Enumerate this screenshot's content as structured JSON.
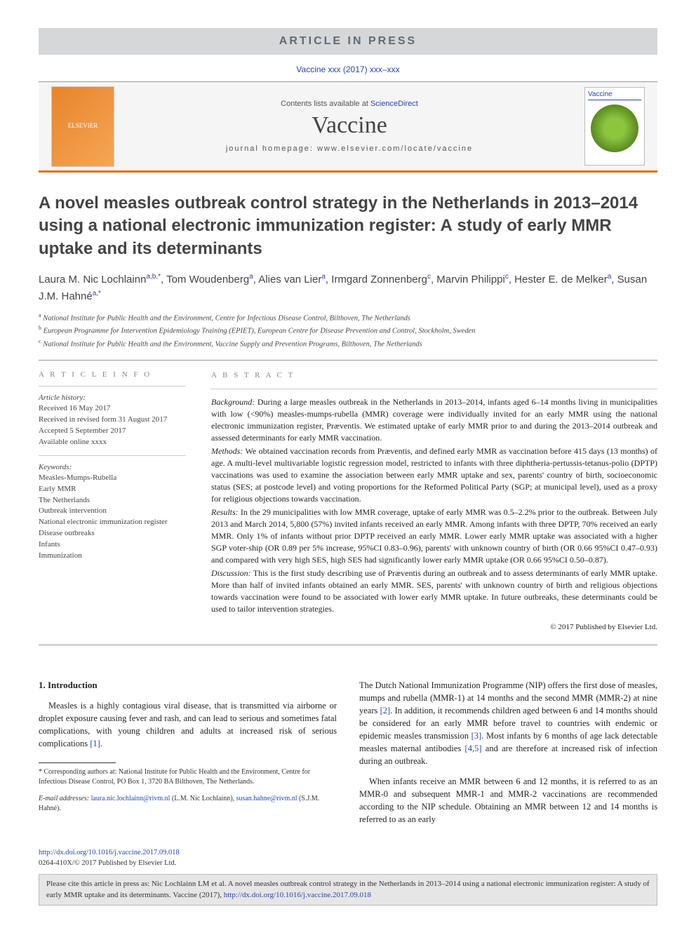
{
  "aip": "ARTICLE IN PRESS",
  "reference": "Vaccine xxx (2017) xxx–xxx",
  "masthead": {
    "contents_prefix": "Contents lists available at ",
    "contents_link": "ScienceDirect",
    "journal": "Vaccine",
    "homepage_label": "journal homepage: www.elsevier.com/locate/vaccine",
    "publisher": "ELSEVIER",
    "cover_label": "Vaccine"
  },
  "title": "A novel measles outbreak control strategy in the Netherlands in 2013–2014 using a national electronic immunization register: A study of early MMR uptake and its determinants",
  "authors_html": "Laura M. Nic Lochlainn<sup>a,b,*</sup>, Tom Woudenberg<sup>a</sup>, Alies van Lier<sup>a</sup>, Irmgard Zonnenberg<sup>c</sup>, Marvin Philippi<sup>c</sup>, Hester E. de Melker<sup>a</sup>, Susan J.M. Hahné<sup>a,*</sup>",
  "affiliations": [
    {
      "sup": "a",
      "text": "National Institute for Public Health and the Environment, Centre for Infectious Disease Control, Bilthoven, The Netherlands"
    },
    {
      "sup": "b",
      "text": "European Programme for Intervention Epidemiology Training (EPIET), European Centre for Disease Prevention and Control, Stockholm, Sweden"
    },
    {
      "sup": "c",
      "text": "National Institute for Public Health and the Environment, Vaccine Supply and Prevention Programs, Bilthoven, The Netherlands"
    }
  ],
  "info": {
    "heading": "A R T I C L E   I N F O",
    "history_label": "Article history:",
    "history": [
      "Received 16 May 2017",
      "Received in revised form 31 August 2017",
      "Accepted 5 September 2017",
      "Available online xxxx"
    ],
    "keywords_label": "Keywords:",
    "keywords": [
      "Measles-Mumps-Rubella",
      "Early MMR",
      "The Netherlands",
      "Outbreak intervention",
      "National electronic immunization register",
      "Disease outbreaks",
      "Infants",
      "Immunization"
    ]
  },
  "abstract": {
    "heading": "A B S T R A C T",
    "sections": [
      {
        "label": "Background:",
        "text": " During a large measles outbreak in the Netherlands in 2013–2014, infants aged 6–14 months living in municipalities with low (<90%) measles-mumps-rubella (MMR) coverage were individually invited for an early MMR using the national electronic immunization register, Præventis. We estimated uptake of early MMR prior to and during the 2013–2014 outbreak and assessed determinants for early MMR vaccination."
      },
      {
        "label": "Methods:",
        "text": " We obtained vaccination records from Præventis, and defined early MMR as vaccination before 415 days (13 months) of age. A multi-level multivariable logistic regression model, restricted to infants with three diphtheria-pertussis-tetanus-polio (DPTP) vaccinations was used to examine the association between early MMR uptake and sex, parents' country of birth, socioeconomic status (SES; at postcode level) and voting proportions for the Reformed Political Party (SGP; at municipal level), used as a proxy for religious objections towards vaccination."
      },
      {
        "label": "Results:",
        "text": " In the 29 municipalities with low MMR coverage, uptake of early MMR was 0.5–2.2% prior to the outbreak. Between July 2013 and March 2014, 5,800 (57%) invited infants received an early MMR. Among infants with three DPTP, 70% received an early MMR. Only 1% of infants without prior DPTP received an early MMR. Lower early MMR uptake was associated with a higher SGP voter-ship (OR 0.89 per 5% increase, 95%CI 0.83–0.96), parents' with unknown country of birth (OR 0.66 95%CI 0.47–0.93) and compared with very high SES, high SES had significantly lower early MMR uptake (OR 0.66 95%CI 0.50–0.87)."
      },
      {
        "label": "Discussion:",
        "text": " This is the first study describing use of Præventis during an outbreak and to assess determinants of early MMR uptake. More than half of invited infants obtained an early MMR. SES, parents' with unknown country of birth and religious objections towards vaccination were found to be associated with lower early MMR uptake. In future outbreaks, these determinants could be used to tailor intervention strategies."
      }
    ],
    "copyright": "© 2017 Published by Elsevier Ltd."
  },
  "body": {
    "section_heading": "1. Introduction",
    "left_p1": "Measles is a highly contagious viral disease, that is transmitted via airborne or droplet exposure causing fever and rash, and can lead to serious and sometimes fatal complications, with young children and adults at increased risk of serious complications ",
    "left_ref1": "[1]",
    "left_p1_tail": ".",
    "right_p1": "The Dutch National Immunization Programme (NIP) offers the first dose of measles, mumps and rubella (MMR-1) at 14 months and the second MMR (MMR-2) at nine years ",
    "right_ref2": "[2]",
    "right_p1_mid": ". In addition, it recommends children aged between 6 and 14 months should be considered for an early MMR before travel to countries with endemic or epidemic measles transmission ",
    "right_ref3": "[3]",
    "right_p1_mid2": ". Most infants by 6 months of age lack detectable measles maternal antibodies ",
    "right_ref45": "[4,5]",
    "right_p1_tail": " and are therefore at increased risk of infection during an outbreak.",
    "right_p2": "When infants receive an MMR between 6 and 12 months, it is referred to as an MMR-0 and subsequent MMR-1 and MMR-2 vaccinations are recommended according to the NIP schedule. Obtaining an MMR between 12 and 14 months is referred to as an early"
  },
  "footnotes": {
    "corresp": "* Corresponding authors at: National Institute for Public Health and the Environment, Centre for Infectious Disease Control, PO Box 1, 3720 BA Bilthoven, The Netherlands.",
    "email_label": "E-mail addresses: ",
    "email1": "laura.nic.lochlainn@rivm.nl",
    "email1_name": " (L.M. Nic Lochlainn), ",
    "email2": "susan.hahne@rivm.nl",
    "email2_name": " (S.J.M. Hahné)."
  },
  "doi": {
    "url": "http://dx.doi.org/10.1016/j.vaccine.2017.09.018",
    "issn": "0264-410X/© 2017 Published by Elsevier Ltd."
  },
  "citebox": {
    "text": "Please cite this article in press as: Nic Lochlainn LM et al. A novel measles outbreak control strategy in the Netherlands in 2013–2014 using a national electronic immunization register: A study of early MMR uptake and its determinants. Vaccine (2017), ",
    "url": "http://dx.doi.org/10.1016/j.vaccine.2017.09.018"
  },
  "colors": {
    "link": "#2846a6",
    "accent_rule": "#e47200",
    "aip_bg": "#d5d7d9"
  }
}
